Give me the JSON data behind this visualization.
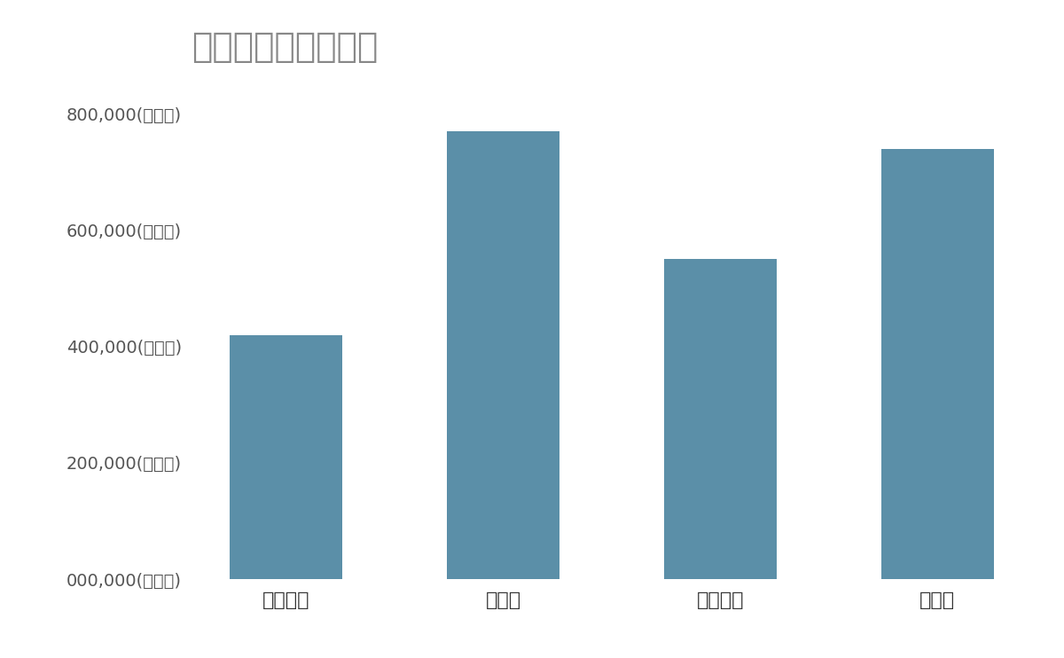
{
  "title": "競合含む年間売上高",
  "categories": [
    "日本触媒",
    "クラレ",
    "ダイセル",
    "カネカ"
  ],
  "values": [
    420000,
    770000,
    550000,
    740000
  ],
  "bar_color": "#5b8fa8",
  "background_color": "#ffffff",
  "title_color": "#888888",
  "ytick_labels": [
    "000,000(百万円)",
    "200,000(百万円)",
    "400,000(百万円)",
    "600,000(百万円)",
    "800,000(百万円)"
  ],
  "ytick_values": [
    0,
    200000,
    400000,
    600000,
    800000
  ],
  "ylim": [
    0,
    860000
  ],
  "title_fontsize": 28,
  "tick_fontsize": 14,
  "xtick_fontsize": 16
}
